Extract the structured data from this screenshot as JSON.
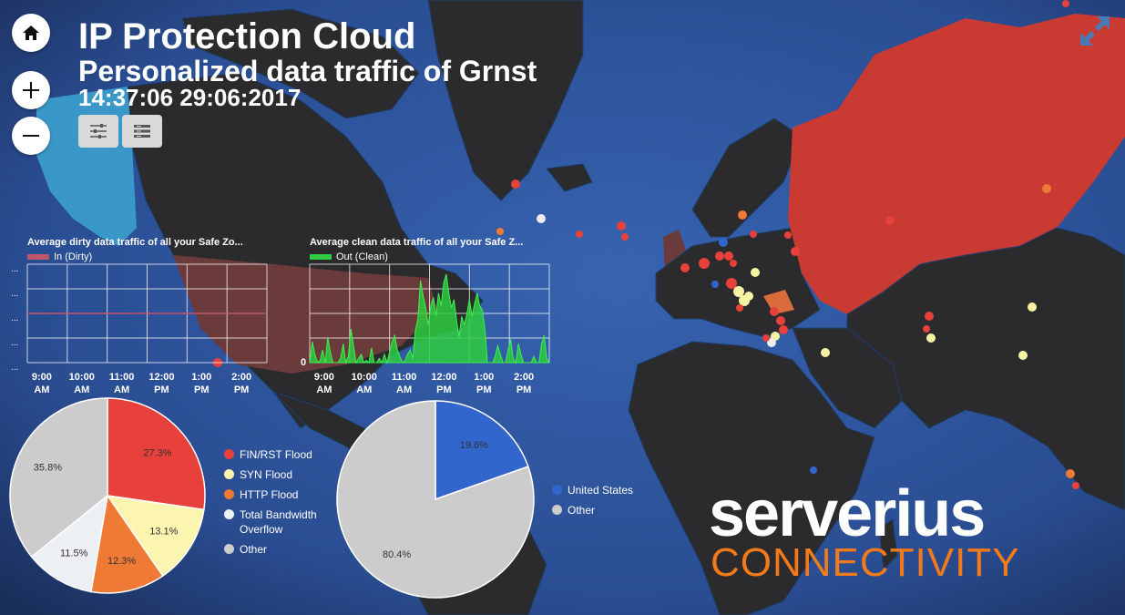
{
  "header": {
    "title": "IP Protection Cloud",
    "subtitle": "Personalized data traffic of Grnst",
    "datetime": "14:37:06 29:06:2017"
  },
  "controls": {
    "home_icon": "home-icon",
    "zoom_in_icon": "plus-icon",
    "zoom_out_icon": "minus-icon",
    "filter_icon": "sliders-icon",
    "list_icon": "list-icon",
    "fullscreen_icon": "expand-icon"
  },
  "brand": {
    "line1": "serverius",
    "line2": "CONNECTIVITY",
    "colors": {
      "line1": "#ffffff",
      "line2": "#f07a1c"
    }
  },
  "colors": {
    "ocean": "#274a8c",
    "land": "#2b2b2d",
    "dirty": "#c0566a",
    "clean": "#2ecc40",
    "red": "#e8403a",
    "yellow": "#f7f3a3",
    "orange": "#ef7a35",
    "white": "#eeeeee",
    "gray": "#c8c8c8",
    "blue": "#3366cc"
  },
  "chart_data": [
    {
      "type": "line",
      "title": "Average dirty data traffic of all your Safe Zo...",
      "series": [
        {
          "name": "In (Dirty)",
          "color": "#c0566a",
          "values": [
            0,
            0,
            0,
            0,
            0,
            0,
            0,
            0,
            0,
            0,
            0,
            0,
            0,
            0,
            0,
            0,
            0,
            0,
            0,
            0,
            0,
            0,
            0,
            0,
            0,
            0,
            0,
            0,
            0,
            0
          ]
        }
      ],
      "y_tick_labels": [
        "...",
        "...",
        "...",
        "...",
        "..."
      ],
      "x_tick_labels": [
        [
          "9:00",
          "AM"
        ],
        [
          "10:00",
          "AM"
        ],
        [
          "11:00",
          "AM"
        ],
        [
          "12:00",
          "PM"
        ],
        [
          "1:00",
          "PM"
        ],
        [
          "2:00",
          "PM"
        ]
      ],
      "grid": true
    },
    {
      "type": "area",
      "title": "Average clean data traffic of all your Safe Z...",
      "series": [
        {
          "name": "Out (Clean)",
          "color": "#2ecc40",
          "values": [
            0,
            1,
            0.4,
            0,
            0.1,
            0.6,
            0,
            1.2,
            0.5,
            0,
            0,
            0,
            0.2,
            0.9,
            0,
            0.3,
            1.6,
            0.8,
            0,
            0.2,
            0.4,
            0,
            0.1,
            0,
            0.7,
            0,
            0,
            0.2,
            0,
            0.4,
            0,
            0.5,
            1.0,
            1.3,
            0.6,
            0.3,
            0,
            0.1,
            0.4,
            0.6,
            0.2,
            1.5,
            2.1,
            3.9,
            3.2,
            2.6,
            1.8,
            2.7,
            3.1,
            2.2,
            3.3,
            2.7,
            3.8,
            4.2,
            3.3,
            2.6,
            3.0,
            2.0,
            1.2,
            2.2,
            1.8,
            2.3,
            3.0,
            2.2,
            2.8,
            3.3,
            2.7,
            2.5,
            1.6,
            0,
            0,
            0,
            0.3,
            0.8,
            0.4,
            0,
            0,
            0.6,
            1.1,
            0.2,
            0,
            0.9,
            0.4,
            0,
            0,
            0,
            0,
            0.3,
            0,
            0,
            0.9,
            1.3,
            0.2,
            0
          ]
        }
      ],
      "y_tick_labels": [
        "0"
      ],
      "x_tick_labels": [
        [
          "9:00",
          "AM"
        ],
        [
          "10:00",
          "AM"
        ],
        [
          "11:00",
          "AM"
        ],
        [
          "12:00",
          "PM"
        ],
        [
          "1:00",
          "PM"
        ],
        [
          "2:00",
          "PM"
        ]
      ],
      "grid": true
    },
    {
      "type": "pie",
      "slices": [
        {
          "label": "FIN/RST Flood",
          "value": 27.3,
          "color": "#e8403a",
          "text": "27.3%"
        },
        {
          "label": "SYN Flood",
          "value": 13.1,
          "color": "#fbf5b0",
          "text": "13.1%"
        },
        {
          "label": "HTTP Flood",
          "value": 12.3,
          "color": "#ef7a35",
          "text": "12.3%"
        },
        {
          "label": "Total Bandwidth Overflow",
          "value": 11.5,
          "color": "#eceff3",
          "text": "11.5%"
        },
        {
          "label": "Other",
          "value": 35.8,
          "color": "#cccccc",
          "text": "35.8%"
        }
      ],
      "legend": [
        "FIN/RST Flood",
        "SYN Flood",
        "HTTP Flood",
        [
          "Total Bandwidth",
          "Overflow"
        ],
        "Other"
      ]
    },
    {
      "type": "pie",
      "slices": [
        {
          "label": "United States",
          "value": 19.6,
          "color": "#3366cc",
          "text": "19.6%"
        },
        {
          "label": "Other",
          "value": 80.4,
          "color": "#cccccc",
          "text": "80.4%"
        }
      ],
      "legend": [
        "United States",
        "Other"
      ]
    }
  ]
}
